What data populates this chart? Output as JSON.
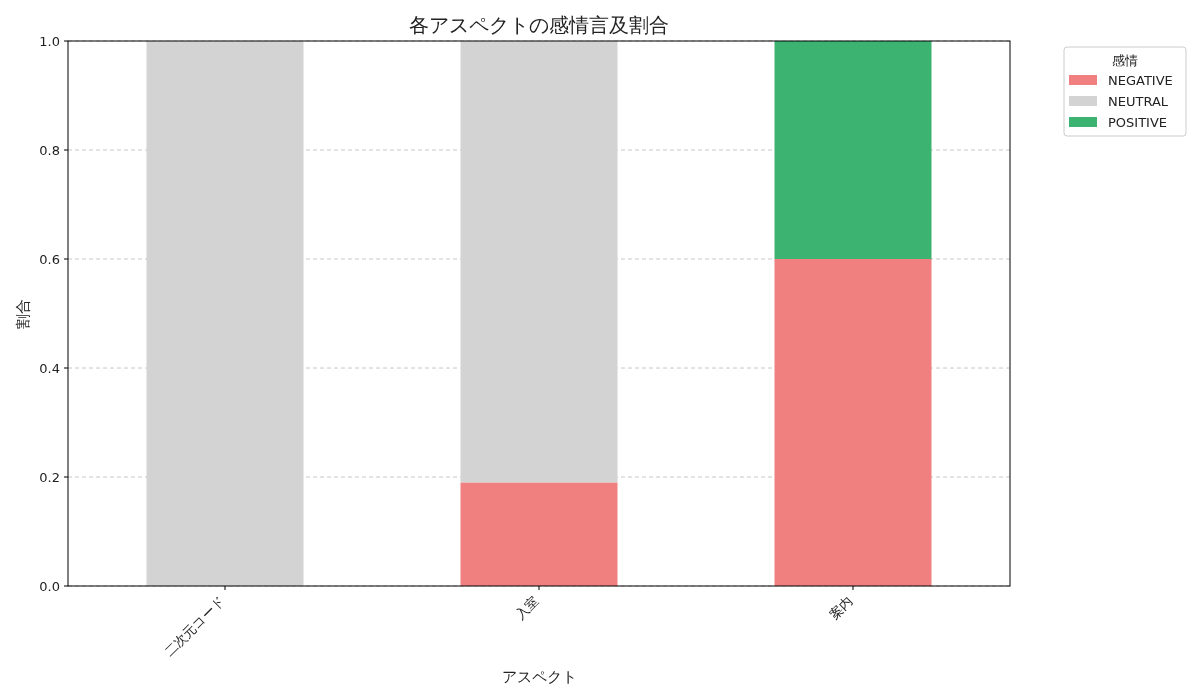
{
  "chart_data": {
    "type": "bar",
    "title": "各アスペクトの感情言及割合",
    "xlabel": "アスペクト",
    "ylabel": "割合",
    "legend_title": "感情",
    "categories": [
      "二次元コード",
      "入室",
      "案内"
    ],
    "series": [
      {
        "name": "NEGATIVE",
        "color": "#f08080",
        "values": [
          0,
          0.19,
          0.6
        ]
      },
      {
        "name": "NEUTRAL",
        "color": "#d3d3d3",
        "values": [
          1,
          0.81,
          0
        ]
      },
      {
        "name": "POSITIVE",
        "color": "#3cb371",
        "values": [
          0,
          0,
          0.4
        ]
      }
    ],
    "stacked": true,
    "ylim": [
      0,
      1
    ],
    "yticks": [
      {
        "value": 0,
        "label": "0.0"
      },
      0.2,
      0.4,
      0.6,
      0.8,
      {
        "value": 1,
        "label": "1.0"
      }
    ],
    "grid": "y",
    "legend": "top right"
  }
}
